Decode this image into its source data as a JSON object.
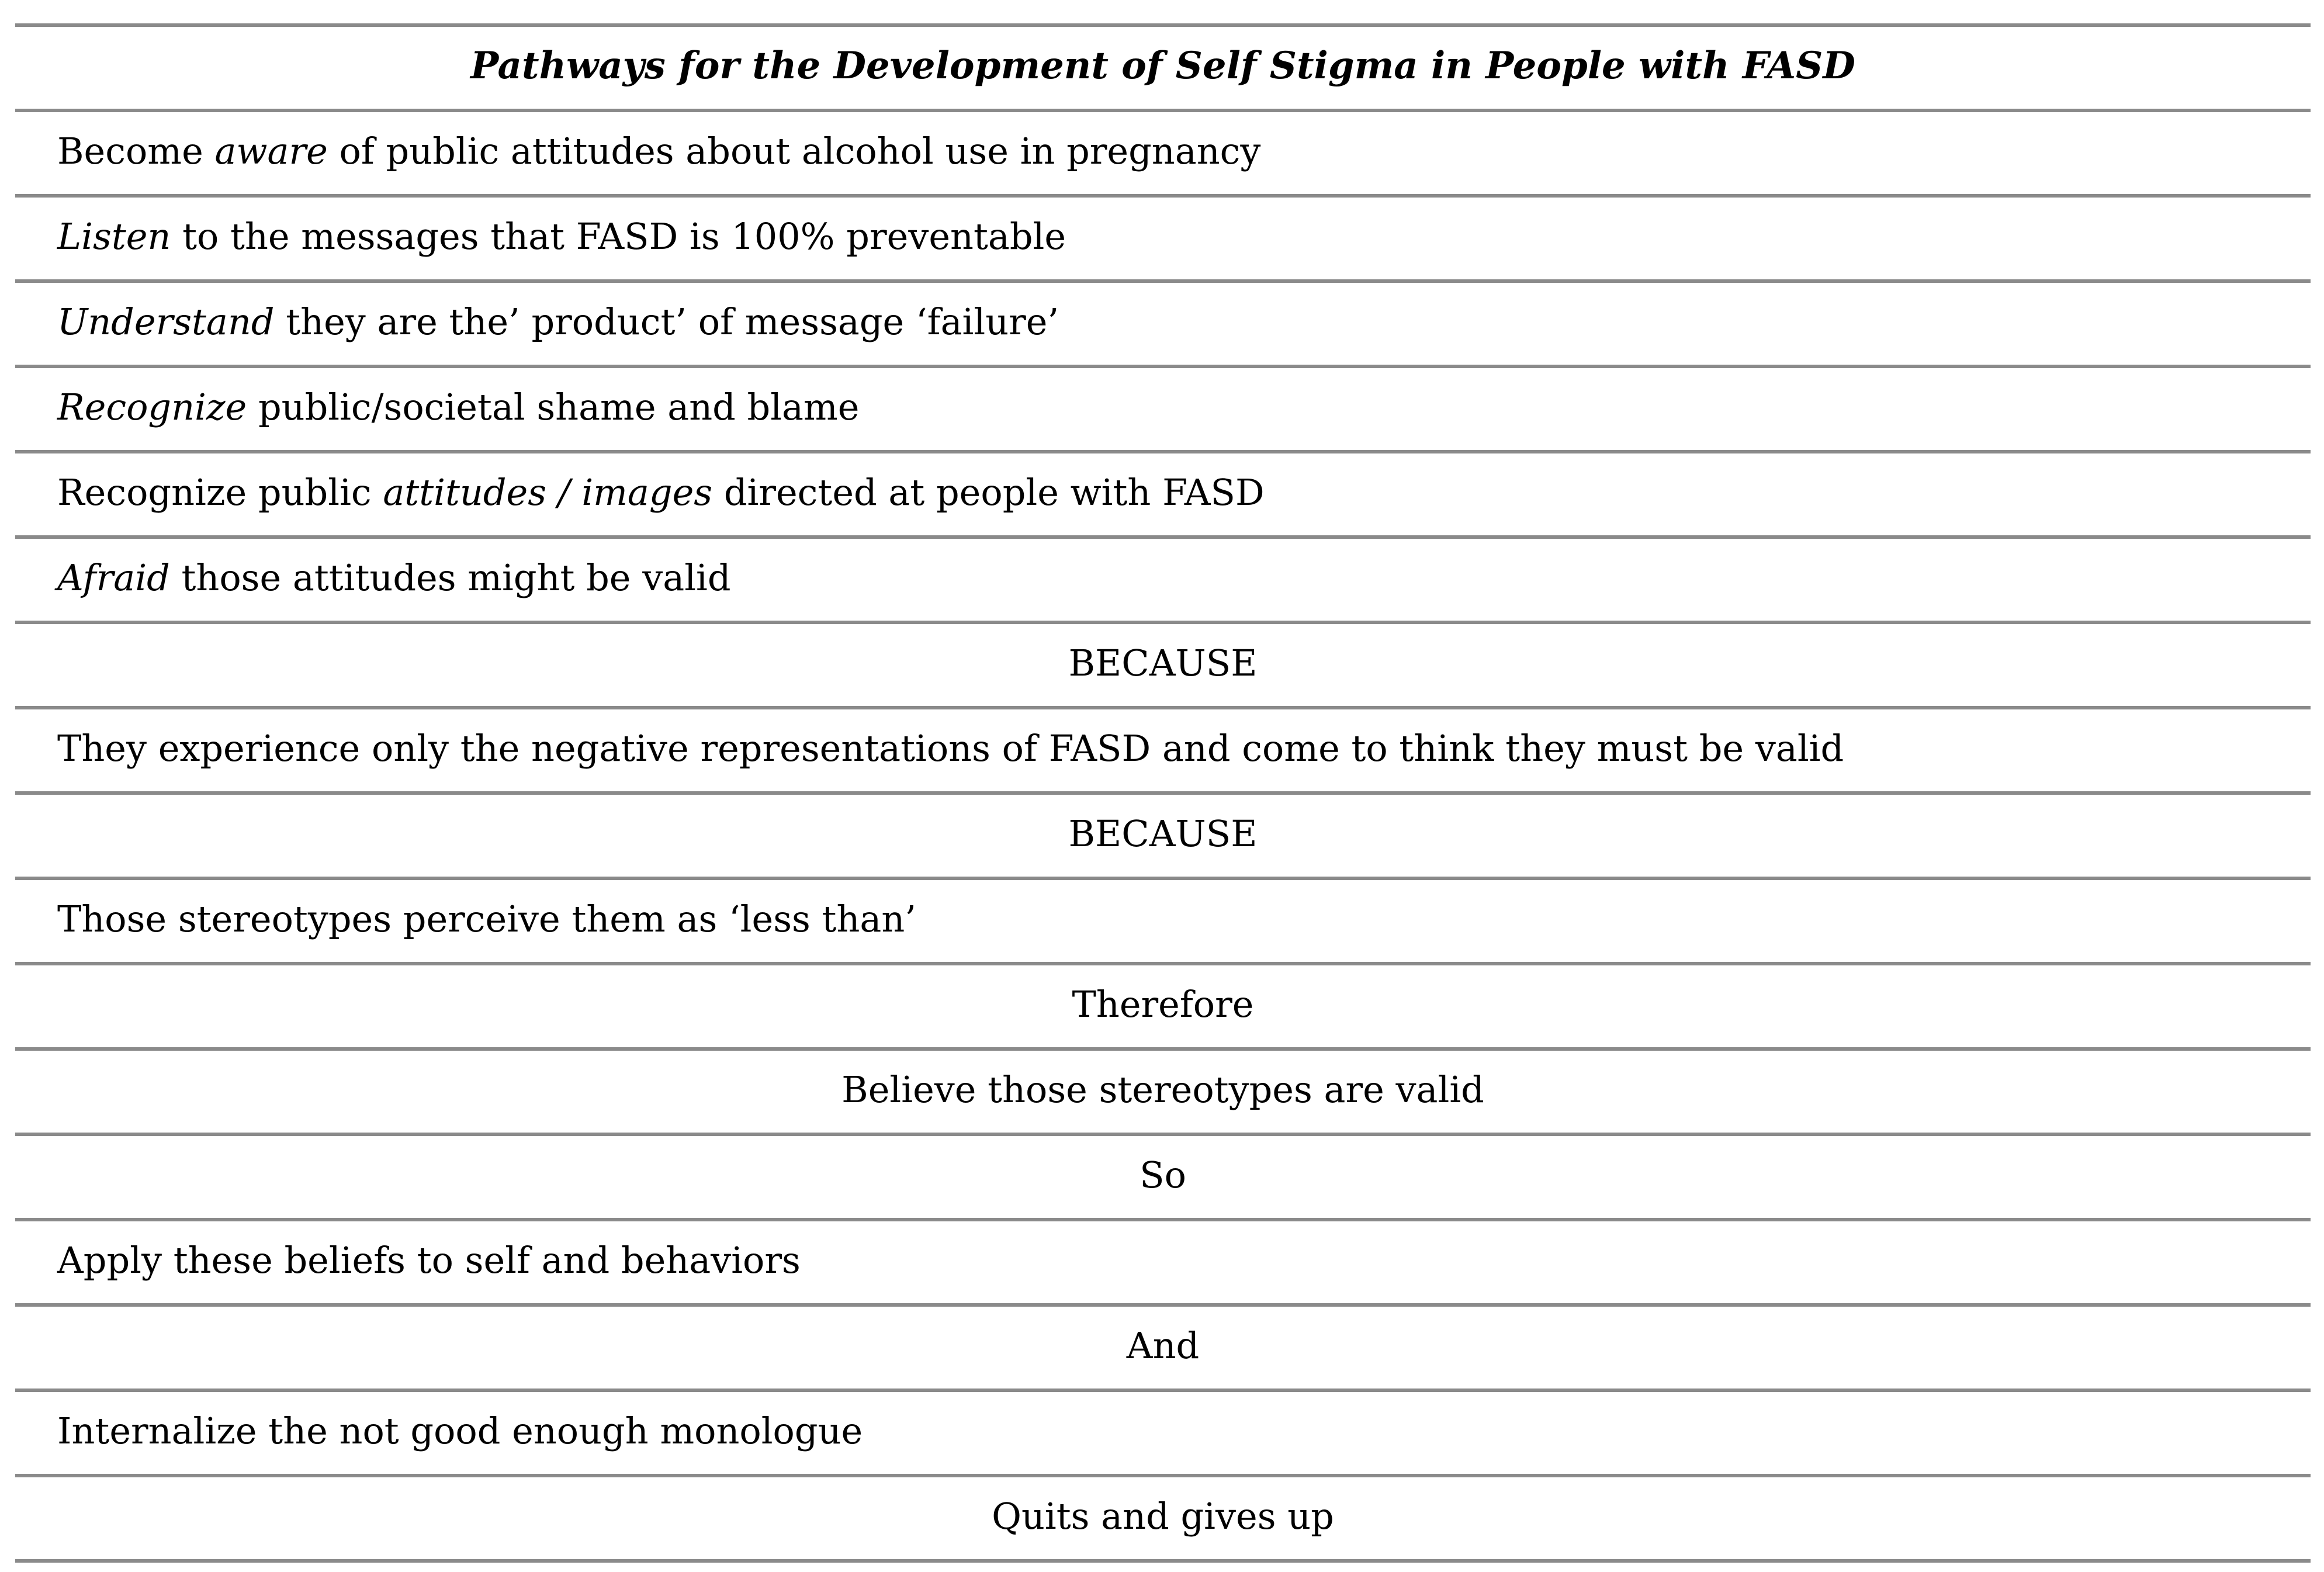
{
  "colors": {
    "rule": "#8a8a8a",
    "text": "#000000",
    "background": "#ffffff"
  },
  "table": {
    "rows": [
      {
        "name": "title-row",
        "align": "center",
        "title": true,
        "parts": [
          {
            "text": "Pathways for the Development of Self Stigma in People with FASD",
            "italic": false
          }
        ]
      },
      {
        "name": "row-become-aware",
        "align": "left",
        "parts": [
          {
            "text": "Become ",
            "italic": false
          },
          {
            "text": "aware",
            "italic": true
          },
          {
            "text": " of public attitudes about alcohol use in pregnancy",
            "italic": false
          }
        ]
      },
      {
        "name": "row-listen",
        "align": "left",
        "parts": [
          {
            "text": "Listen",
            "italic": true
          },
          {
            "text": " to the messages that FASD is 100% preventable",
            "italic": false
          }
        ]
      },
      {
        "name": "row-understand",
        "align": "left",
        "parts": [
          {
            "text": "Understand",
            "italic": true
          },
          {
            "text": " they are the’ product’ of message ‘failure’",
            "italic": false
          }
        ]
      },
      {
        "name": "row-recognize-shame",
        "align": "left",
        "parts": [
          {
            "text": "Recognize",
            "italic": true
          },
          {
            "text": " public/societal shame and blame",
            "italic": false
          }
        ]
      },
      {
        "name": "row-recognize-attitudes",
        "align": "left",
        "parts": [
          {
            "text": "Recognize public ",
            "italic": false
          },
          {
            "text": "attitudes / images",
            "italic": true
          },
          {
            "text": " directed at people with FASD",
            "italic": false
          }
        ]
      },
      {
        "name": "row-afraid",
        "align": "left",
        "parts": [
          {
            "text": "Afraid",
            "italic": true
          },
          {
            "text": " those attitudes might be valid",
            "italic": false
          }
        ]
      },
      {
        "name": "row-because-1",
        "align": "center",
        "parts": [
          {
            "text": "BECAUSE",
            "italic": false
          }
        ]
      },
      {
        "name": "row-experience",
        "align": "left",
        "parts": [
          {
            "text": "They experience only the negative representations of FASD and come to think they must be valid",
            "italic": false
          }
        ]
      },
      {
        "name": "row-because-2",
        "align": "center",
        "parts": [
          {
            "text": "BECAUSE",
            "italic": false
          }
        ]
      },
      {
        "name": "row-stereotypes-less-than",
        "align": "left",
        "parts": [
          {
            "text": "Those stereotypes perceive them as ‘less than’",
            "italic": false
          }
        ]
      },
      {
        "name": "row-therefore",
        "align": "center",
        "parts": [
          {
            "text": "Therefore",
            "italic": false
          }
        ]
      },
      {
        "name": "row-believe",
        "align": "center",
        "parts": [
          {
            "text": "Believe those stereotypes are valid",
            "italic": false
          }
        ]
      },
      {
        "name": "row-so",
        "align": "center",
        "parts": [
          {
            "text": "So",
            "italic": false
          }
        ]
      },
      {
        "name": "row-apply-beliefs",
        "align": "left",
        "parts": [
          {
            "text": "Apply these beliefs to self and behaviors",
            "italic": false
          }
        ]
      },
      {
        "name": "row-and",
        "align": "center",
        "parts": [
          {
            "text": "And",
            "italic": false
          }
        ]
      },
      {
        "name": "row-internalize",
        "align": "left",
        "parts": [
          {
            "text": "Internalize the not good enough monologue",
            "italic": false
          }
        ]
      },
      {
        "name": "row-quits",
        "align": "center",
        "parts": [
          {
            "text": "Quits and gives up",
            "italic": false
          }
        ]
      }
    ]
  }
}
